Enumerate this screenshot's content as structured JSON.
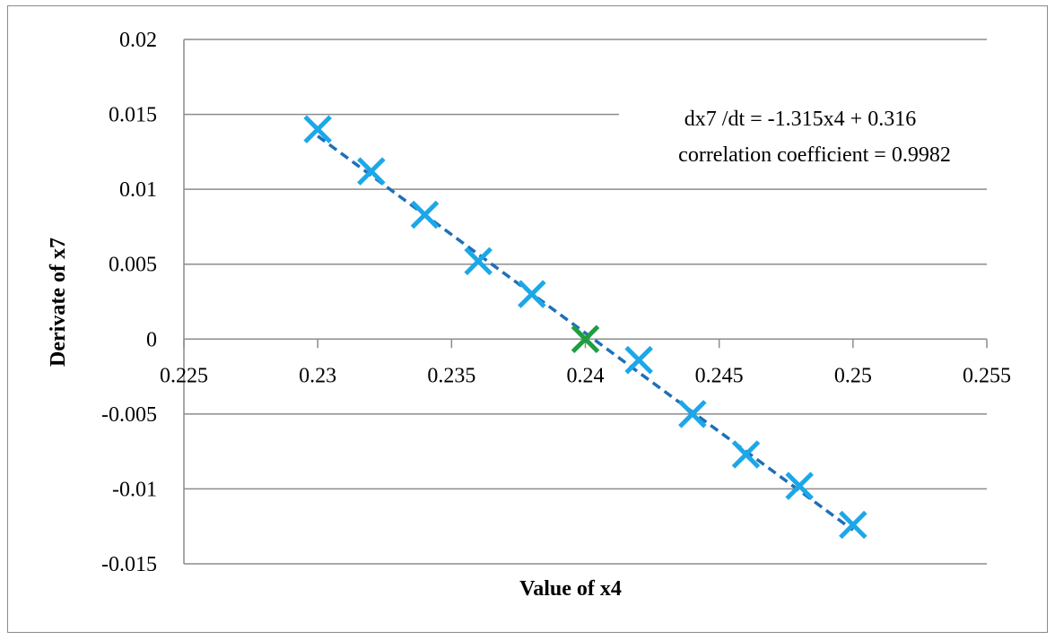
{
  "chart_data": {
    "type": "scatter",
    "title": "",
    "xlabel": "Value of x4",
    "ylabel": "Derivate of x7",
    "xlim": [
      0.225,
      0.255
    ],
    "ylim": [
      -0.015,
      0.02
    ],
    "x_ticks": [
      "0.225",
      "0.23",
      "0.235",
      "0.24",
      "0.245",
      "0.25",
      "0.255"
    ],
    "y_ticks": [
      "0.02",
      "0.015",
      "0.01",
      "0.005",
      "0",
      "-0.005",
      "-0.01",
      "-0.015"
    ],
    "grid": "horizontal",
    "series": [
      {
        "marker": "x",
        "color": "#1CA8E8",
        "x": [
          0.23,
          0.232,
          0.234,
          0.236,
          0.238,
          0.242,
          0.244,
          0.246,
          0.248,
          0.25
        ],
        "y": [
          0.014,
          0.0112,
          0.0083,
          0.0052,
          0.003,
          -0.0014,
          -0.005,
          -0.0077,
          -0.0098,
          -0.0124
        ]
      },
      {
        "marker": "x",
        "color": "#1E9E3E",
        "x": [
          0.24
        ],
        "y": [
          0.0
        ]
      }
    ],
    "trendline": {
      "slope": -1.315,
      "intercept": 0.316,
      "x_range": [
        0.23,
        0.25
      ],
      "style": "dashed",
      "color": "#1F6FB8"
    },
    "annotations": [
      "dx7 /dt = -1.315x4 + 0.316",
      "correlation coefficient = 0.9982"
    ]
  }
}
